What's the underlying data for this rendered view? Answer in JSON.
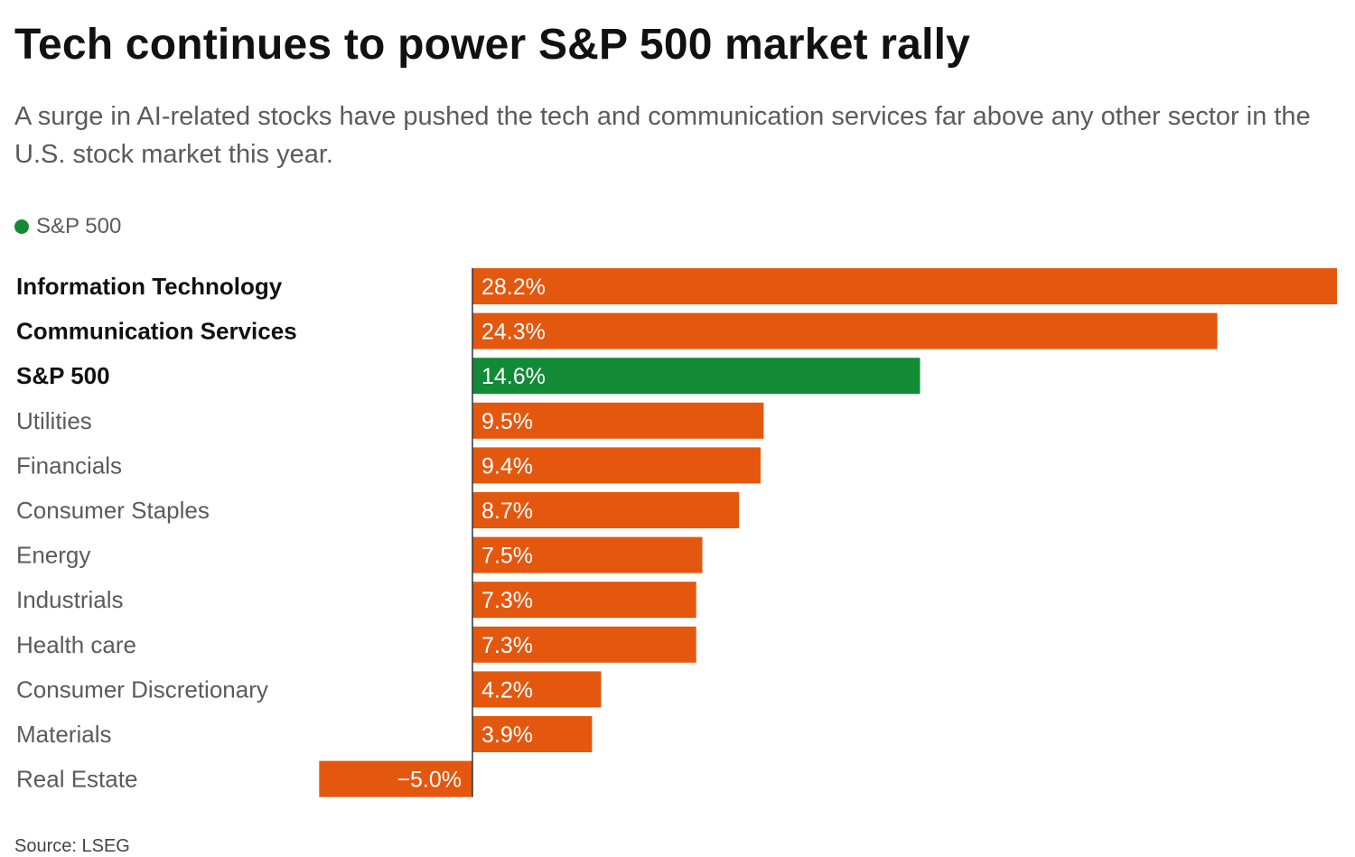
{
  "header": {
    "title": "Tech continues to power S&P 500 market rally",
    "subtitle": "A surge in AI-related stocks have pushed the tech and communication services far above any other sector in the U.S. stock market this year."
  },
  "legend": {
    "label": "S&P 500",
    "color": "#138a36"
  },
  "colors": {
    "sector": "#e4570f",
    "benchmark": "#138a36",
    "axis": "#333333"
  },
  "source": "Source: LSEG",
  "chart_data": {
    "type": "bar",
    "orientation": "horizontal",
    "title": "Tech continues to power S&P 500 market rally",
    "subtitle": "A surge in AI-related stocks have pushed the tech and communication services far above any other sector in the U.S. stock market this year.",
    "unit": "%",
    "xlim": [
      -5.0,
      28.2
    ],
    "grid": false,
    "legend": {
      "placement": "top-left",
      "entries": [
        "S&P 500"
      ]
    },
    "categories": [
      "Information Technology",
      "Communication Services",
      "S&P 500",
      "Utilities",
      "Financials",
      "Consumer Staples",
      "Energy",
      "Industrials",
      "Health care",
      "Consumer Discretionary",
      "Materials",
      "Real Estate"
    ],
    "values": [
      28.2,
      24.3,
      14.6,
      9.5,
      9.4,
      8.7,
      7.5,
      7.3,
      7.3,
      4.2,
      3.9,
      -5.0
    ],
    "labels": [
      "28.2%",
      "24.3%",
      "14.6%",
      "9.5%",
      "9.4%",
      "8.7%",
      "7.5%",
      "7.3%",
      "7.3%",
      "4.2%",
      "3.9%",
      "−5.0%"
    ],
    "highlighted": [
      true,
      true,
      true,
      false,
      false,
      false,
      false,
      false,
      false,
      false,
      false,
      false
    ],
    "benchmark": "S&P 500"
  }
}
